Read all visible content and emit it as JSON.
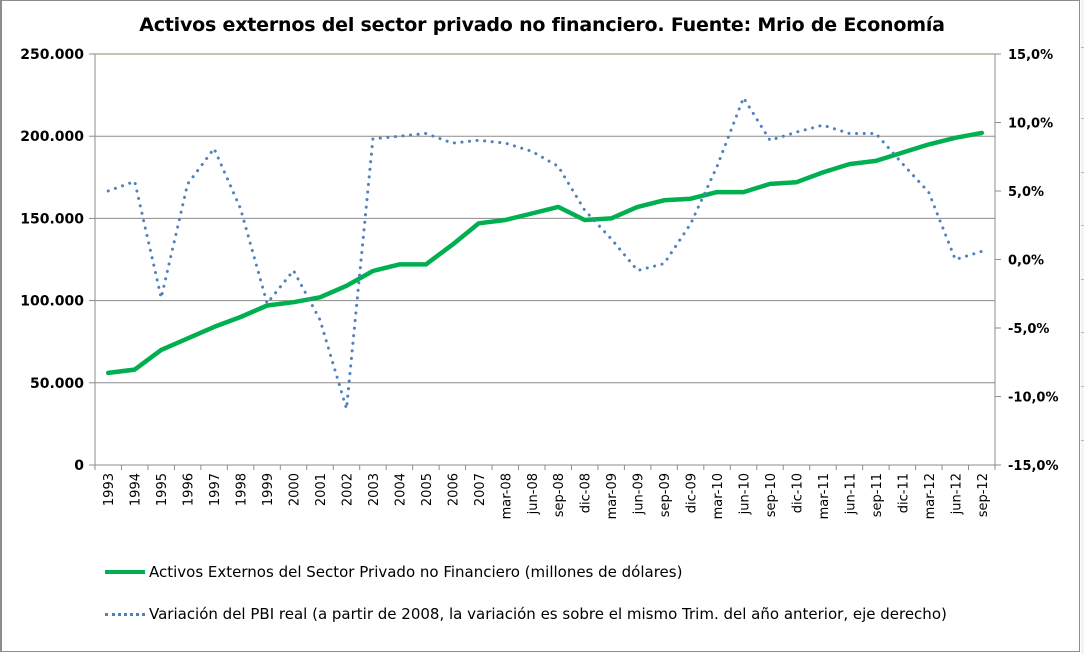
{
  "chart_data": {
    "type": "line",
    "title": "Activos externos del sector privado no financiero. Fuente: Mrio de Economía",
    "xlabel": "",
    "ylabel": "",
    "y2label": "",
    "categories": [
      "1993",
      "1994",
      "1995",
      "1996",
      "1997",
      "1998",
      "1999",
      "2000",
      "2001",
      "2002",
      "2003",
      "2004",
      "2005",
      "2006",
      "2007",
      "mar-08",
      "jun-08",
      "sep-08",
      "dic-08",
      "mar-09",
      "jun-09",
      "sep-09",
      "dic-09",
      "mar-10",
      "jun-10",
      "sep-10",
      "dic-10",
      "mar-11",
      "jun-11",
      "sep-11",
      "dic-11",
      "mar-12",
      "jun-12",
      "sep-12"
    ],
    "ylim": [
      0,
      250000
    ],
    "y_ticks": [
      0,
      50000,
      100000,
      150000,
      200000,
      250000
    ],
    "y_tick_labels": [
      "0",
      "50.000",
      "100.000",
      "150.000",
      "200.000",
      "250.000"
    ],
    "y2lim": [
      -15,
      15
    ],
    "y2_ticks": [
      -15,
      -10,
      -5,
      0,
      5,
      10,
      15
    ],
    "y2_tick_labels": [
      "-15,0%",
      "-10,0%",
      "-5,0%",
      "0,0%",
      "5,0%",
      "10,0%",
      "15,0%"
    ],
    "grid": true,
    "legend_position": "bottom",
    "series": [
      {
        "name": "Activos Externos del Sector Privado no Financiero (millones de dólares)",
        "axis": "left",
        "style": "solid",
        "color": "#00b050",
        "values": [
          56000,
          58000,
          70000,
          77000,
          84000,
          90000,
          97000,
          99000,
          102000,
          109000,
          118000,
          122000,
          122000,
          134000,
          147000,
          149000,
          153000,
          157000,
          149000,
          150000,
          157000,
          161000,
          162000,
          166000,
          166000,
          171000,
          172000,
          178000,
          183000,
          185000,
          190000,
          195000,
          199000,
          202000
        ]
      },
      {
        "name": "Variación del PBI real (a partir de 2008, la variación es sobre el mismo Trim. del año anterior, eje derecho)",
        "axis": "right",
        "style": "dotted",
        "color": "#4f81bd",
        "values": [
          5.0,
          5.7,
          -2.8,
          5.5,
          8.1,
          3.7,
          -3.2,
          -0.8,
          -4.4,
          -10.9,
          8.8,
          9.0,
          9.2,
          8.5,
          8.7,
          8.5,
          7.9,
          6.8,
          3.6,
          1.5,
          -0.8,
          -0.3,
          2.6,
          6.8,
          11.8,
          8.7,
          9.3,
          9.8,
          9.2,
          9.2,
          7.0,
          4.9,
          0.0,
          0.6
        ]
      }
    ]
  }
}
